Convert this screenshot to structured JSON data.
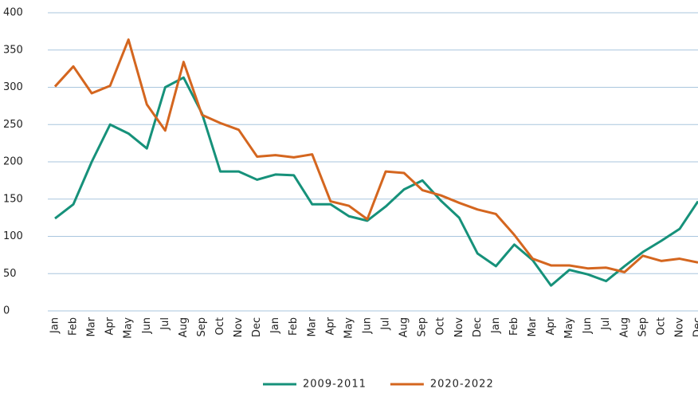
{
  "chart_data": {
    "type": "line",
    "categories": [
      "Jan",
      "Feb",
      "Mar",
      "Apr",
      "May",
      "Jun",
      "Jul",
      "Aug",
      "Sep",
      "Oct",
      "Nov",
      "Dec",
      "Jan",
      "Feb",
      "Mar",
      "Apr",
      "May",
      "Jun",
      "Jul",
      "Aug",
      "Sep",
      "Oct",
      "Nov",
      "Dec",
      "Jan",
      "Feb",
      "Mar",
      "Apr",
      "May",
      "Jun",
      "Jul",
      "Aug",
      "Sep",
      "Oct",
      "Nov",
      "Dec"
    ],
    "series": [
      {
        "name": "2009-2011",
        "color": "#16917a",
        "values": [
          124,
          143,
          200,
          250,
          238,
          218,
          300,
          313,
          265,
          187,
          187,
          176,
          183,
          182,
          143,
          143,
          127,
          121,
          140,
          163,
          175,
          148,
          125,
          77,
          60,
          89,
          68,
          34,
          55,
          49,
          40,
          60,
          79,
          94,
          110,
          147
        ]
      },
      {
        "name": "2020-2022",
        "color": "#d4661f",
        "values": [
          301,
          328,
          292,
          302,
          364,
          277,
          242,
          334,
          263,
          252,
          243,
          207,
          209,
          206,
          210,
          147,
          141,
          123,
          187,
          185,
          162,
          155,
          145,
          136,
          130,
          102,
          70,
          61,
          61,
          57,
          58,
          52,
          74,
          67,
          70,
          65
        ]
      }
    ],
    "ylim": [
      0,
      400
    ],
    "yticks": [
      0,
      50,
      100,
      150,
      200,
      250,
      300,
      350,
      400
    ],
    "grid": true
  }
}
